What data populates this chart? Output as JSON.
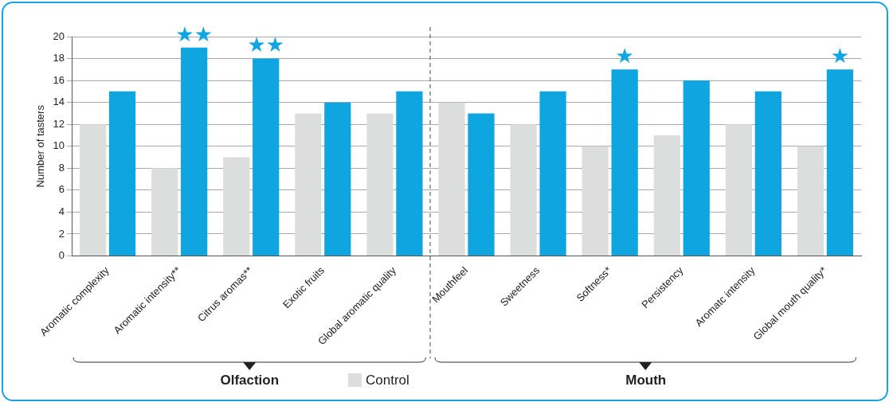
{
  "chart_data": {
    "type": "bar",
    "ylabel": "Number of tasters",
    "categories": [
      "Aromatic complexity",
      "Aromatic intensity**",
      "Citrus aromas**",
      "Exotic fruits",
      "Global aromatic quality",
      "Mouthfeel",
      "Sweetness",
      "Softness*",
      "Persistency",
      "Aromatc intensity",
      "Global mouth quality*"
    ],
    "series": [
      {
        "name": "Control",
        "color": "#dcdddd",
        "values": [
          12,
          8,
          9,
          13,
          13,
          14,
          12,
          10,
          11,
          12,
          10
        ]
      },
      {
        "color": "#0ea5e0",
        "values": [
          15,
          19,
          18,
          14,
          15,
          13,
          15,
          17,
          16,
          15,
          17
        ]
      }
    ],
    "ylim": [
      0,
      20
    ],
    "yticks": [
      0,
      2,
      4,
      6,
      8,
      10,
      12,
      14,
      16,
      18,
      20
    ],
    "grid": "y",
    "legend": "bottom",
    "annotations": [
      "Olfaction",
      "Mouth",
      {
        "text": "★★",
        "x": "Aromatic intensity**",
        "y": 19
      },
      {
        "text": "★★",
        "x": "Citrus aromas**",
        "y": 18
      },
      {
        "text": "★",
        "x": "Softness*",
        "y": 17
      },
      {
        "text": "★",
        "x": "Global mouth quality*",
        "y": 17
      }
    ]
  }
}
